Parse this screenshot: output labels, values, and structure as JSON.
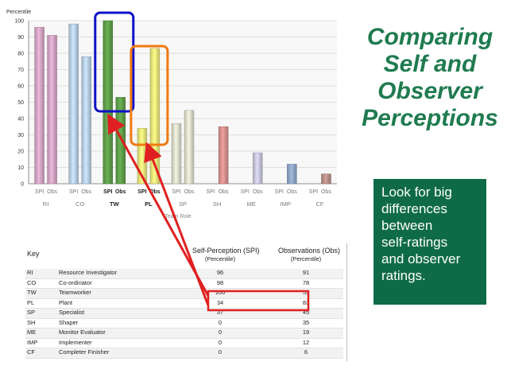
{
  "title_lines": [
    "Comparing",
    "Self and",
    "Observer",
    "Perceptions"
  ],
  "note_lines": [
    "Look for big",
    "differences",
    "between",
    "self-ratings",
    "and observer",
    "ratings."
  ],
  "colors": {
    "title": "#1f7b4f",
    "note_bg": "#0f6b47",
    "highlight_blue": "#1010c8",
    "highlight_orange": "#f07a10",
    "arrow_red": "#e02020"
  },
  "chart_data": {
    "type": "bar",
    "ylabel": "Percentile",
    "xlabel": "Team Role",
    "ylim": [
      0,
      100
    ],
    "yticks": [
      0,
      10,
      20,
      30,
      40,
      50,
      60,
      70,
      80,
      90,
      100
    ],
    "grid": true,
    "categories": [
      "RI",
      "CO",
      "TW",
      "PL",
      "SP",
      "SH",
      "ME",
      "IMP",
      "CF"
    ],
    "bar_labels": [
      "SPI",
      "Obs"
    ],
    "series": [
      {
        "name": "SPI",
        "values": [
          96,
          98,
          100,
          34,
          37,
          0,
          0,
          0,
          0
        ]
      },
      {
        "name": "Obs",
        "values": [
          91,
          78,
          53,
          83,
          45,
          35,
          19,
          12,
          6
        ]
      }
    ],
    "category_colors": [
      "#d4a4c4",
      "#b8cfe6",
      "#5e9e4a",
      "#e8e67a",
      "#dcdccb",
      "#d99090",
      "#c8c6dc",
      "#8fa6c6",
      "#b89088"
    ]
  },
  "key": {
    "header_key": "Key",
    "header_spi": "Self-Perception (SPI)",
    "header_spi_sub": "(Percentile)",
    "header_obs": "Observations (Obs)",
    "header_obs_sub": "(Percentile)",
    "rows": [
      {
        "code": "RI",
        "name": "Resource Investigator",
        "spi": "96",
        "obs": "91"
      },
      {
        "code": "CO",
        "name": "Co-ordinator",
        "spi": "98",
        "obs": "78"
      },
      {
        "code": "TW",
        "name": "Teamworker",
        "spi": "100",
        "obs": "53"
      },
      {
        "code": "PL",
        "name": "Plant",
        "spi": "34",
        "obs": "83"
      },
      {
        "code": "SP",
        "name": "Specialist",
        "spi": "37",
        "obs": "45"
      },
      {
        "code": "SH",
        "name": "Shaper",
        "spi": "0",
        "obs": "35"
      },
      {
        "code": "ME",
        "name": "Monitor Evaluator",
        "spi": "0",
        "obs": "19"
      },
      {
        "code": "IMP",
        "name": "Implementer",
        "spi": "0",
        "obs": "12"
      },
      {
        "code": "CF",
        "name": "Completer Finisher",
        "spi": "0",
        "obs": "6"
      }
    ]
  }
}
